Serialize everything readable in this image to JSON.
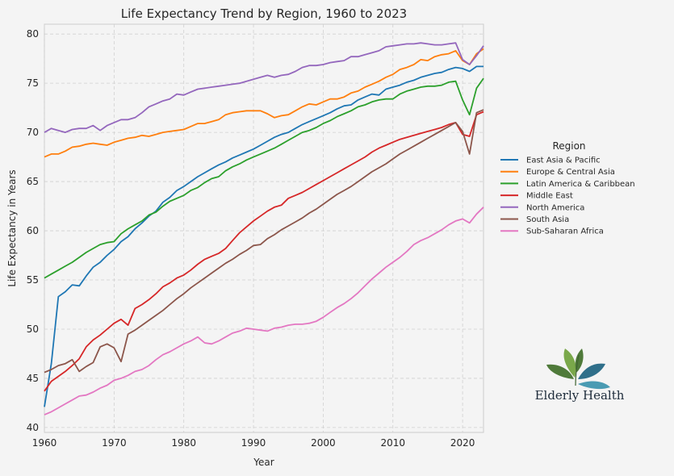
{
  "chart_data": {
    "type": "line",
    "title": "Life Expectancy Trend by Region, 1960 to 2023",
    "xlabel": "Year",
    "ylabel": "Life Expectancy in Years",
    "xlim": [
      1960,
      2023
    ],
    "ylim": [
      39.5,
      81
    ],
    "xticks": [
      1960,
      1970,
      1980,
      1990,
      2000,
      2010,
      2020
    ],
    "yticks": [
      40,
      45,
      50,
      55,
      60,
      65,
      70,
      75,
      80
    ],
    "grid": true,
    "legend": {
      "title": "Region",
      "placement": "right"
    },
    "x": [
      1960,
      1961,
      1962,
      1963,
      1964,
      1965,
      1966,
      1967,
      1968,
      1969,
      1970,
      1971,
      1972,
      1973,
      1974,
      1975,
      1976,
      1977,
      1978,
      1979,
      1980,
      1981,
      1982,
      1983,
      1984,
      1985,
      1986,
      1987,
      1988,
      1989,
      1990,
      1991,
      1992,
      1993,
      1994,
      1995,
      1996,
      1997,
      1998,
      1999,
      2000,
      2001,
      2002,
      2003,
      2004,
      2005,
      2006,
      2007,
      2008,
      2009,
      2010,
      2011,
      2012,
      2013,
      2014,
      2015,
      2016,
      2017,
      2018,
      2019,
      2020,
      2021,
      2022,
      2023
    ],
    "series": [
      {
        "name": "East Asia & Pacific",
        "color": "#1f77b4",
        "values": [
          42.1,
          46.5,
          53.3,
          53.8,
          54.5,
          54.4,
          55.4,
          56.3,
          56.8,
          57.5,
          58.1,
          58.9,
          59.4,
          60.2,
          60.8,
          61.5,
          62.0,
          62.9,
          63.4,
          64.1,
          64.5,
          65.0,
          65.5,
          65.9,
          66.3,
          66.7,
          67.0,
          67.4,
          67.7,
          68.0,
          68.3,
          68.7,
          69.1,
          69.5,
          69.8,
          70.0,
          70.4,
          70.8,
          71.1,
          71.4,
          71.7,
          72.0,
          72.4,
          72.7,
          72.8,
          73.3,
          73.6,
          73.9,
          73.8,
          74.4,
          74.6,
          74.8,
          75.1,
          75.3,
          75.6,
          75.8,
          76.0,
          76.1,
          76.4,
          76.6,
          76.5,
          76.2,
          76.7,
          76.7
        ]
      },
      {
        "name": "Europe & Central Asia",
        "color": "#ff7f0e",
        "values": [
          67.5,
          67.8,
          67.8,
          68.1,
          68.5,
          68.6,
          68.8,
          68.9,
          68.8,
          68.7,
          69.0,
          69.2,
          69.4,
          69.5,
          69.7,
          69.6,
          69.8,
          70.0,
          70.1,
          70.2,
          70.3,
          70.6,
          70.9,
          70.9,
          71.1,
          71.3,
          71.8,
          72.0,
          72.1,
          72.2,
          72.2,
          72.2,
          71.9,
          71.5,
          71.7,
          71.8,
          72.2,
          72.6,
          72.9,
          72.8,
          73.1,
          73.4,
          73.4,
          73.6,
          74.0,
          74.2,
          74.6,
          74.9,
          75.2,
          75.6,
          75.9,
          76.4,
          76.6,
          76.9,
          77.4,
          77.3,
          77.7,
          77.9,
          78.0,
          78.3,
          77.3,
          76.9,
          78.0,
          78.5
        ]
      },
      {
        "name": "Latin America & Caribbean",
        "color": "#2ca02c",
        "values": [
          55.2,
          55.6,
          56.0,
          56.4,
          56.8,
          57.3,
          57.8,
          58.2,
          58.6,
          58.8,
          58.9,
          59.7,
          60.2,
          60.6,
          61.0,
          61.6,
          61.9,
          62.5,
          63.0,
          63.3,
          63.6,
          64.1,
          64.4,
          64.9,
          65.3,
          65.5,
          66.1,
          66.5,
          66.8,
          67.2,
          67.5,
          67.8,
          68.1,
          68.4,
          68.8,
          69.2,
          69.6,
          70.0,
          70.2,
          70.5,
          70.9,
          71.2,
          71.6,
          71.9,
          72.2,
          72.6,
          72.8,
          73.1,
          73.3,
          73.4,
          73.4,
          73.9,
          74.2,
          74.4,
          74.6,
          74.7,
          74.7,
          74.8,
          75.1,
          75.2,
          73.3,
          71.8,
          74.5,
          75.5
        ]
      },
      {
        "name": "Middle East",
        "color": "#d62728",
        "values": [
          43.7,
          44.7,
          45.2,
          45.7,
          46.3,
          47.0,
          48.2,
          48.9,
          49.4,
          50.0,
          50.6,
          51.0,
          50.4,
          52.1,
          52.5,
          53.0,
          53.6,
          54.3,
          54.7,
          55.2,
          55.5,
          56.0,
          56.6,
          57.1,
          57.4,
          57.7,
          58.2,
          59.0,
          59.8,
          60.4,
          61.0,
          61.5,
          62.0,
          62.4,
          62.6,
          63.3,
          63.6,
          63.9,
          64.3,
          64.7,
          65.1,
          65.5,
          65.9,
          66.3,
          66.7,
          67.1,
          67.5,
          68.0,
          68.4,
          68.7,
          69.0,
          69.3,
          69.5,
          69.7,
          69.9,
          70.1,
          70.3,
          70.5,
          70.8,
          71.0,
          69.8,
          69.6,
          71.8,
          72.1
        ]
      },
      {
        "name": "North America",
        "color": "#9467bd",
        "values": [
          70.0,
          70.4,
          70.2,
          70.0,
          70.3,
          70.4,
          70.4,
          70.7,
          70.2,
          70.7,
          71.0,
          71.3,
          71.3,
          71.5,
          72.0,
          72.6,
          72.9,
          73.2,
          73.4,
          73.9,
          73.8,
          74.1,
          74.4,
          74.5,
          74.6,
          74.7,
          74.8,
          74.9,
          75.0,
          75.2,
          75.4,
          75.6,
          75.8,
          75.6,
          75.8,
          75.9,
          76.2,
          76.6,
          76.8,
          76.8,
          76.9,
          77.1,
          77.2,
          77.3,
          77.7,
          77.7,
          77.9,
          78.1,
          78.3,
          78.7,
          78.8,
          78.9,
          79.0,
          79.0,
          79.1,
          79.0,
          78.9,
          78.9,
          79.0,
          79.1,
          77.4,
          76.9,
          77.8,
          78.8
        ]
      },
      {
        "name": "South Asia",
        "color": "#8c564b",
        "values": [
          45.6,
          45.9,
          46.3,
          46.5,
          46.9,
          45.7,
          46.2,
          46.6,
          48.2,
          48.5,
          48.1,
          46.7,
          49.5,
          49.9,
          50.4,
          50.9,
          51.4,
          51.9,
          52.5,
          53.1,
          53.6,
          54.2,
          54.7,
          55.2,
          55.7,
          56.2,
          56.7,
          57.1,
          57.6,
          58.0,
          58.5,
          58.6,
          59.2,
          59.6,
          60.1,
          60.5,
          60.9,
          61.3,
          61.8,
          62.2,
          62.7,
          63.2,
          63.7,
          64.1,
          64.5,
          65.0,
          65.5,
          66.0,
          66.4,
          66.8,
          67.3,
          67.8,
          68.2,
          68.6,
          69.0,
          69.4,
          69.8,
          70.2,
          70.6,
          71.0,
          70.1,
          67.8,
          72.0,
          72.3
        ]
      },
      {
        "name": "Sub-Saharan Africa",
        "color": "#e377c2",
        "values": [
          41.3,
          41.6,
          42.0,
          42.4,
          42.8,
          43.2,
          43.3,
          43.6,
          44.0,
          44.3,
          44.8,
          45.0,
          45.3,
          45.7,
          45.9,
          46.3,
          46.9,
          47.4,
          47.7,
          48.1,
          48.5,
          48.8,
          49.2,
          48.6,
          48.5,
          48.8,
          49.2,
          49.6,
          49.8,
          50.1,
          50.0,
          49.9,
          49.8,
          50.1,
          50.2,
          50.4,
          50.5,
          50.5,
          50.6,
          50.8,
          51.2,
          51.7,
          52.2,
          52.6,
          53.1,
          53.7,
          54.4,
          55.1,
          55.7,
          56.3,
          56.8,
          57.3,
          57.9,
          58.6,
          59.0,
          59.3,
          59.7,
          60.1,
          60.6,
          61.0,
          61.2,
          60.8,
          61.7,
          62.4
        ]
      }
    ]
  },
  "logo": {
    "text": "Elderly Health",
    "leaf_colors": [
      "#4f7a3a",
      "#7aa84a",
      "#2f6f8a",
      "#4a9bb3"
    ]
  }
}
